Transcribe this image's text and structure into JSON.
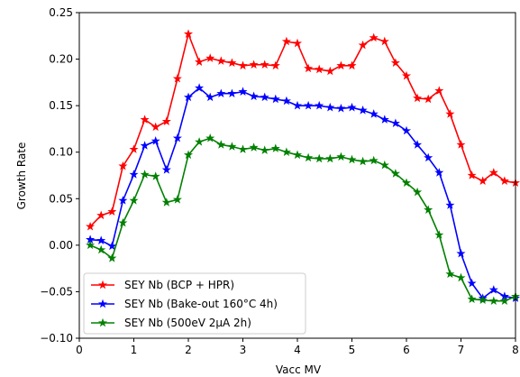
{
  "chart_data": {
    "type": "line",
    "title": "",
    "xlabel": "Vacc MV",
    "ylabel": "Growth Rate",
    "xlim": [
      0,
      8
    ],
    "ylim": [
      -0.1,
      0.25
    ],
    "xticks": [
      "0",
      "1",
      "2",
      "3",
      "4",
      "5",
      "6",
      "7",
      "8"
    ],
    "yticks": [
      "−0.10",
      "−0.05",
      "0.00",
      "0.05",
      "0.10",
      "0.15",
      "0.20",
      "0.25"
    ],
    "grid": false,
    "legend_position": "lower-left",
    "x": [
      0.2,
      0.4,
      0.6,
      0.8,
      1.0,
      1.2,
      1.4,
      1.6,
      1.8,
      2.0,
      2.2,
      2.4,
      2.6,
      2.8,
      3.0,
      3.2,
      3.4,
      3.6,
      3.8,
      4.0,
      4.2,
      4.4,
      4.6,
      4.8,
      5.0,
      5.2,
      5.4,
      5.6,
      5.8,
      6.0,
      6.2,
      6.4,
      6.6,
      6.8,
      7.0,
      7.2,
      7.4,
      7.6,
      7.8,
      8.0
    ],
    "series": [
      {
        "name": "SEY Nb (BCP + HPR)",
        "color": "#ff0000",
        "values": [
          0.02,
          0.032,
          0.036,
          0.085,
          0.103,
          0.135,
          0.127,
          0.133,
          0.179,
          0.227,
          0.197,
          0.201,
          0.198,
          0.196,
          0.193,
          0.194,
          0.194,
          0.193,
          0.219,
          0.217,
          0.19,
          0.189,
          0.187,
          0.193,
          0.193,
          0.215,
          0.223,
          0.219,
          0.196,
          0.182,
          0.158,
          0.157,
          0.166,
          0.141,
          0.108,
          0.075,
          0.069,
          0.078,
          0.069,
          0.067
        ]
      },
      {
        "name": "SEY Nb (Bake-out 160°C 4h)",
        "color": "#0000ff",
        "values": [
          0.006,
          0.005,
          -0.001,
          0.048,
          0.076,
          0.107,
          0.112,
          0.081,
          0.115,
          0.159,
          0.169,
          0.159,
          0.163,
          0.163,
          0.165,
          0.16,
          0.159,
          0.157,
          0.155,
          0.15,
          0.15,
          0.15,
          0.148,
          0.147,
          0.148,
          0.145,
          0.141,
          0.135,
          0.131,
          0.123,
          0.108,
          0.094,
          0.078,
          0.043,
          -0.009,
          -0.041,
          -0.057,
          -0.048,
          -0.055,
          -0.057
        ]
      },
      {
        "name": "SEY Nb (500eV 2μA 2h)",
        "color": "#008000",
        "values": [
          0.0,
          -0.005,
          -0.014,
          0.024,
          0.048,
          0.076,
          0.074,
          0.046,
          0.049,
          0.097,
          0.111,
          0.115,
          0.108,
          0.106,
          0.103,
          0.105,
          0.102,
          0.104,
          0.1,
          0.097,
          0.094,
          0.093,
          0.093,
          0.095,
          0.092,
          0.09,
          0.091,
          0.086,
          0.077,
          0.067,
          0.057,
          0.038,
          0.011,
          -0.031,
          -0.035,
          -0.058,
          -0.059,
          -0.06,
          -0.06,
          -0.055
        ]
      }
    ]
  }
}
